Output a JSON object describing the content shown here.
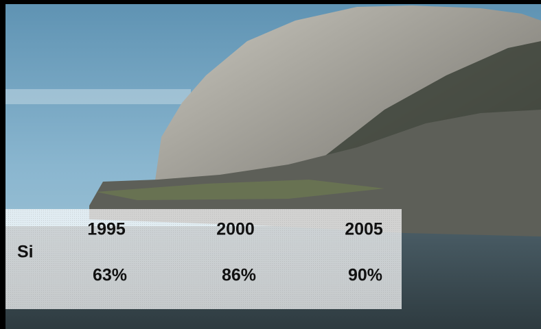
{
  "table": {
    "columns": [
      "1995",
      "2000",
      "2005"
    ],
    "rows": [
      {
        "label": "Si",
        "cells": [
          "63%",
          "86%",
          "90%"
        ]
      }
    ]
  }
}
